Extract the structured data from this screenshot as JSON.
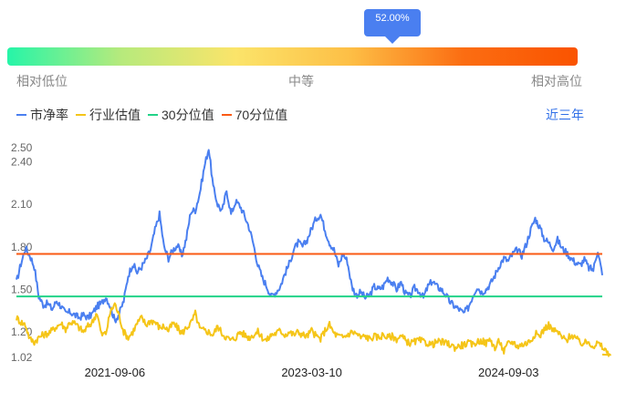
{
  "gauge": {
    "value_label": "52.00%",
    "percentile": 0.52,
    "low_label": "相对低位",
    "mid_label": "中等",
    "high_label": "相对高位",
    "gradient": [
      "#26f5a8",
      "#b7ea7c",
      "#fbe46a",
      "#fdbf46",
      "#fb6d12",
      "#fa5300"
    ]
  },
  "range_label": "近三年",
  "chart_data": {
    "type": "line",
    "title": "",
    "xlabel": "",
    "ylabel": "",
    "y_ticks": [
      "2.50",
      "2.40",
      "2.10",
      "1.80",
      "1.50",
      "1.20",
      "1.02"
    ],
    "ylim": [
      1.02,
      2.5
    ],
    "x_ticks": [
      {
        "label": "2021-09-06",
        "t": 0.168
      },
      {
        "label": "2023-03-10",
        "t": 0.504
      },
      {
        "label": "2024-09-03",
        "t": 0.84
      }
    ],
    "grid": false,
    "legend_position": "top-left",
    "series": [
      {
        "name": "市净率",
        "color": "#4a7ff0",
        "values": [
          1.55,
          1.68,
          1.79,
          1.74,
          1.66,
          1.45,
          1.39,
          1.4,
          1.36,
          1.42,
          1.38,
          1.33,
          1.34,
          1.32,
          1.3,
          1.32,
          1.3,
          1.33,
          1.38,
          1.4,
          1.45,
          1.38,
          1.28,
          1.33,
          1.42,
          1.6,
          1.68,
          1.62,
          1.66,
          1.71,
          1.78,
          1.92,
          2.03,
          1.8,
          1.72,
          1.78,
          1.81,
          1.74,
          1.86,
          2.05,
          2.06,
          2.18,
          2.36,
          2.5,
          2.22,
          2.1,
          2.05,
          2.2,
          2.03,
          2.12,
          2.09,
          2.02,
          1.94,
          1.82,
          1.67,
          1.58,
          1.52,
          1.45,
          1.48,
          1.52,
          1.61,
          1.68,
          1.78,
          1.83,
          1.8,
          1.85,
          1.93,
          2.0,
          2.03,
          1.92,
          1.83,
          1.78,
          1.67,
          1.75,
          1.7,
          1.52,
          1.46,
          1.48,
          1.44,
          1.46,
          1.52,
          1.5,
          1.52,
          1.58,
          1.55,
          1.5,
          1.55,
          1.47,
          1.45,
          1.51,
          1.49,
          1.44,
          1.52,
          1.56,
          1.52,
          1.5,
          1.46,
          1.41,
          1.38,
          1.36,
          1.33,
          1.37,
          1.45,
          1.52,
          1.48,
          1.5,
          1.54,
          1.6,
          1.67,
          1.72,
          1.7,
          1.75,
          1.78,
          1.74,
          1.82,
          1.92,
          2.0,
          1.94,
          1.86,
          1.83,
          1.79,
          1.85,
          1.79,
          1.76,
          1.72,
          1.69,
          1.67,
          1.71,
          1.65,
          1.64,
          1.78,
          1.6
        ],
        "value_note": "approximate, read off the chart"
      },
      {
        "name": "行业估值",
        "color": "#f5c518",
        "values": [
          1.3,
          1.27,
          1.25,
          1.15,
          1.13,
          1.16,
          1.18,
          1.19,
          1.21,
          1.24,
          1.26,
          1.22,
          1.27,
          1.26,
          1.23,
          1.2,
          1.24,
          1.27,
          1.34,
          1.18,
          1.19,
          1.34,
          1.4,
          1.31,
          1.2,
          1.16,
          1.2,
          1.26,
          1.3,
          1.25,
          1.28,
          1.27,
          1.23,
          1.24,
          1.21,
          1.26,
          1.23,
          1.19,
          1.23,
          1.26,
          1.33,
          1.22,
          1.21,
          1.2,
          1.18,
          1.24,
          1.19,
          1.16,
          1.14,
          1.16,
          1.2,
          1.18,
          1.16,
          1.18,
          1.2,
          1.16,
          1.14,
          1.18,
          1.19,
          1.21,
          1.18,
          1.2,
          1.18,
          1.2,
          1.18,
          1.17,
          1.21,
          1.17,
          1.15,
          1.21,
          1.25,
          1.19,
          1.17,
          1.16,
          1.18,
          1.2,
          1.19,
          1.16,
          1.17,
          1.15,
          1.17,
          1.16,
          1.18,
          1.16,
          1.17,
          1.15,
          1.17,
          1.14,
          1.12,
          1.13,
          1.14,
          1.13,
          1.12,
          1.11,
          1.13,
          1.13,
          1.12,
          1.11,
          1.09,
          1.1,
          1.11,
          1.12,
          1.11,
          1.13,
          1.14,
          1.12,
          1.15,
          1.08,
          1.14,
          1.06,
          1.12,
          1.13,
          1.1,
          1.11,
          1.12,
          1.14,
          1.19,
          1.17,
          1.22,
          1.25,
          1.21,
          1.2,
          1.16,
          1.14,
          1.18,
          1.16,
          1.12,
          1.12,
          1.13,
          1.1,
          1.12,
          1.09,
          1.06,
          1.04
        ],
        "value_note": "approximate, read off the chart"
      },
      {
        "name": "30分位值",
        "color": "#22d388",
        "constant": 1.45
      },
      {
        "name": "70分位值",
        "color": "#fa5a14",
        "constant": 1.75
      }
    ]
  }
}
